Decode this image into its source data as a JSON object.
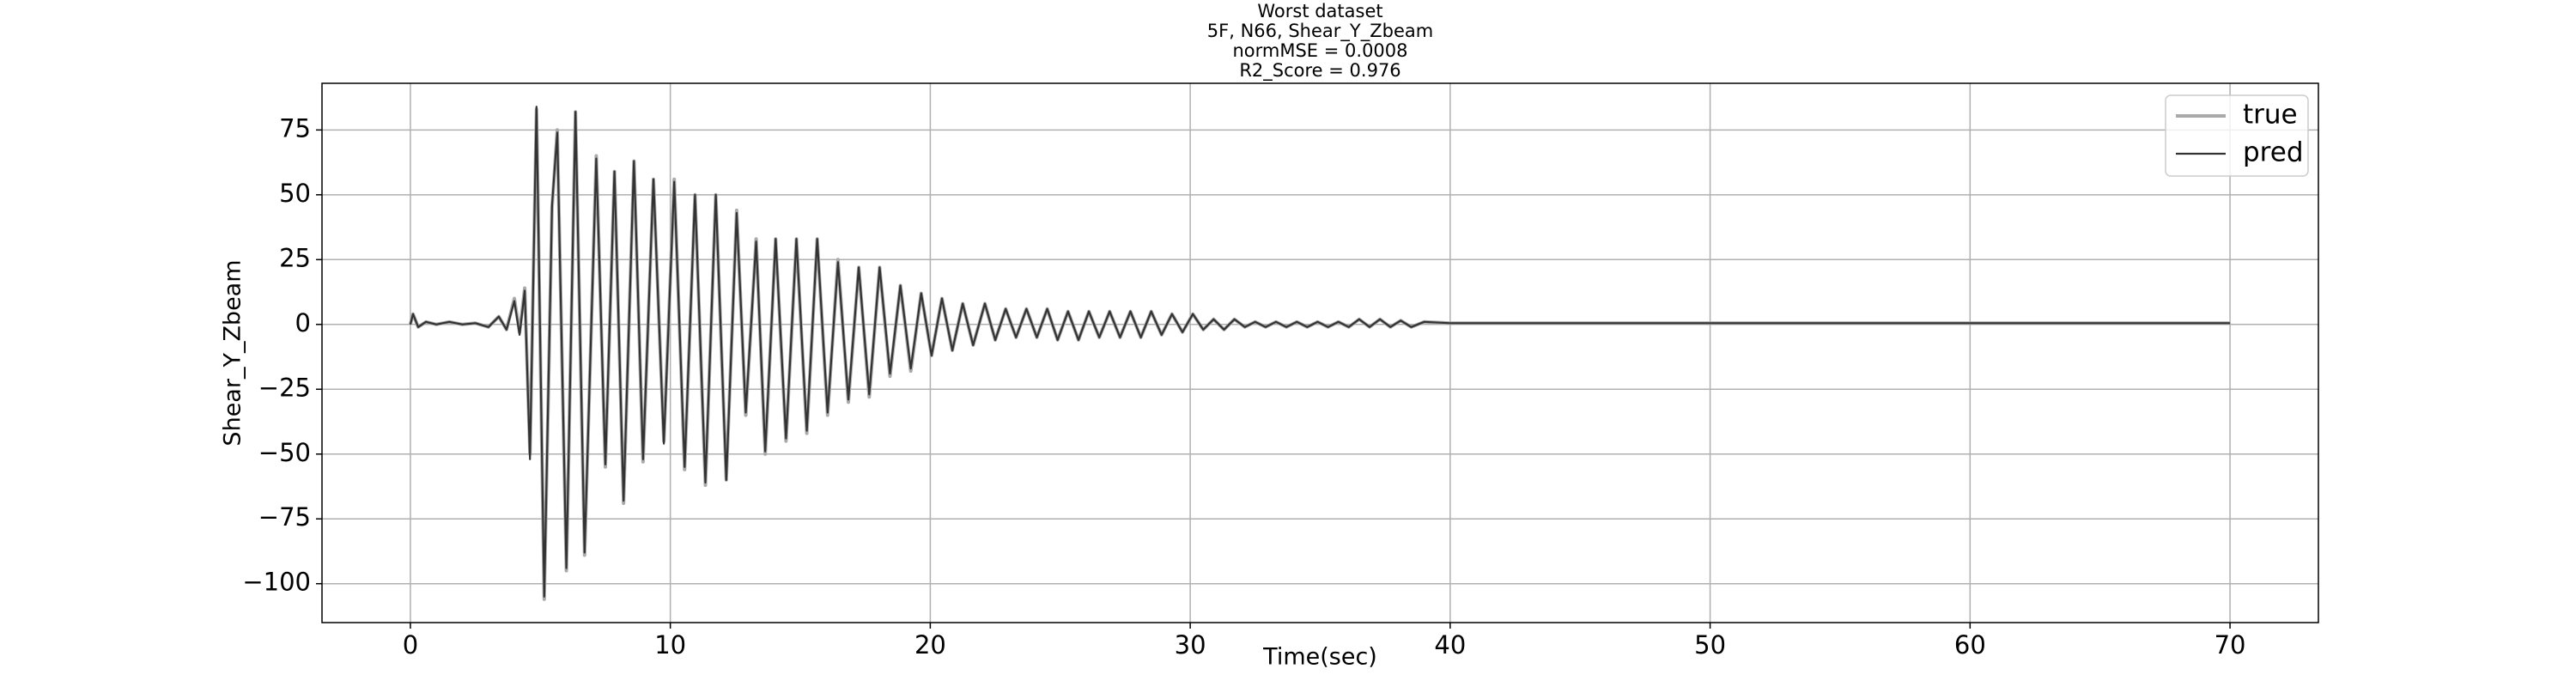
{
  "chart_data": {
    "type": "line",
    "title": [
      "Worst dataset",
      "5F, N66, Shear_Y_Zbeam",
      "normMSE = 0.0008",
      "R2_Score = 0.976"
    ],
    "x_label": "Time(sec)",
    "y_label": "Shear_Y_Zbeam",
    "x": [
      0,
      0.1,
      0.3,
      0.6,
      1.0,
      1.5,
      2.0,
      2.5,
      3.0,
      3.4,
      3.7,
      4.0,
      4.2,
      4.4,
      4.6,
      4.85,
      5.15,
      5.45,
      5.65,
      6.0,
      6.35,
      6.7,
      7.15,
      7.5,
      7.85,
      8.2,
      8.6,
      8.95,
      9.35,
      9.75,
      10.15,
      10.55,
      10.95,
      11.35,
      11.75,
      12.15,
      12.55,
      12.9,
      13.3,
      13.65,
      14.05,
      14.45,
      14.85,
      15.25,
      15.65,
      16.05,
      16.45,
      16.85,
      17.25,
      17.65,
      18.05,
      18.45,
      18.85,
      19.25,
      19.65,
      20.05,
      20.45,
      20.85,
      21.25,
      21.65,
      22.1,
      22.5,
      22.9,
      23.3,
      23.7,
      24.1,
      24.5,
      24.9,
      25.3,
      25.7,
      26.1,
      26.5,
      26.9,
      27.3,
      27.7,
      28.1,
      28.5,
      28.9,
      29.3,
      29.7,
      30.1,
      30.5,
      30.9,
      31.3,
      31.7,
      32.1,
      32.5,
      32.9,
      33.3,
      33.7,
      34.1,
      34.5,
      34.9,
      35.3,
      35.7,
      36.1,
      36.5,
      36.9,
      37.3,
      37.7,
      38.1,
      38.5,
      39,
      40,
      45,
      50,
      55,
      60,
      70
    ],
    "series": [
      {
        "name": "true",
        "color": "#aaaaaa",
        "values": [
          0,
          4,
          -1,
          1,
          0,
          1,
          0,
          0.5,
          -1,
          3,
          -2,
          10,
          -3,
          14,
          -50,
          83,
          -106,
          45,
          75,
          -95,
          82,
          -89,
          65,
          -55,
          59,
          -69,
          63,
          -53,
          56,
          -45,
          56,
          -56,
          50,
          -62,
          50,
          -60,
          44,
          -35,
          33,
          -50,
          33,
          -45,
          33,
          -42,
          33,
          -35,
          25,
          -30,
          22,
          -28,
          22,
          -20,
          15,
          -18,
          12,
          -12,
          10,
          -10,
          8,
          -8,
          8,
          -6,
          6,
          -5,
          6,
          -5,
          6,
          -6,
          5,
          -6,
          5,
          -5,
          5,
          -5,
          5,
          -5,
          5,
          -4,
          4,
          -3,
          4,
          -2,
          2,
          -2,
          2,
          -1,
          1,
          -1,
          1,
          -1,
          1,
          -1,
          1,
          -1,
          1,
          -1,
          2,
          -1,
          2,
          -1,
          1.5,
          -1,
          1,
          0.5,
          0.5,
          0.5,
          0.5,
          0.5,
          0.5
        ]
      },
      {
        "name": "pred",
        "color": "#333333",
        "values": [
          0,
          4,
          -1,
          1,
          0,
          1,
          0,
          0.5,
          -1,
          3,
          -2,
          9,
          -4,
          13,
          -52,
          84,
          -105,
          46,
          74,
          -94,
          82,
          -88,
          64,
          -54,
          59,
          -68,
          63,
          -52,
          56,
          -46,
          55,
          -55,
          50,
          -61,
          50,
          -60,
          43,
          -34,
          32,
          -49,
          33,
          -44,
          33,
          -41,
          33,
          -34,
          24,
          -29,
          22,
          -27,
          22,
          -19,
          15,
          -17,
          12,
          -12,
          10,
          -10,
          8,
          -8,
          8,
          -6,
          6,
          -5,
          6,
          -5,
          6,
          -6,
          5,
          -6,
          5,
          -5,
          5,
          -5,
          5,
          -5,
          5,
          -4,
          4,
          -3,
          4,
          -2,
          2,
          -2,
          2,
          -1,
          1,
          -1,
          1,
          -1,
          1,
          -1,
          1,
          -1,
          1,
          -1,
          2,
          -1,
          2,
          -1,
          1.5,
          -1,
          1,
          0.5,
          0.5,
          0.5,
          0.5,
          0.5,
          0.5
        ]
      }
    ],
    "xlim": [
      -3.4,
      73.4
    ],
    "ylim": [
      -115,
      93
    ],
    "xticks": [
      0,
      10,
      20,
      30,
      40,
      50,
      60,
      70
    ],
    "yticks": [
      {
        "value": -100,
        "label": "−100"
      },
      {
        "value": -75,
        "label": "−75"
      },
      {
        "value": -50,
        "label": "−50"
      },
      {
        "value": -25,
        "label": "−25"
      },
      0,
      25,
      50,
      75
    ],
    "grid": true,
    "legend": "upper right"
  }
}
